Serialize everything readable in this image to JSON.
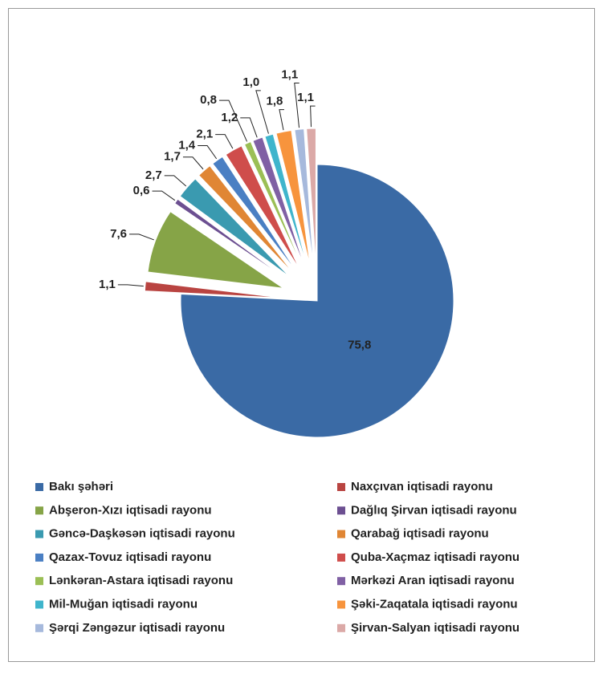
{
  "chart_data": {
    "type": "pie",
    "categories": [
      "Bakı şəhəri",
      "Naxçıvan iqtisadi rayonu",
      "Abşeron-Xızı iqtisadi rayonu",
      "Dağlıq Şirvan iqtisadi rayonu",
      "Gəncə-Daşkəsən iqtisadi rayonu",
      "Qarabağ iqtisadi rayonu",
      "Qazax-Tovuz iqtisadi rayonu",
      "Quba-Xaçmaz iqtisadi rayonu",
      "Lənkəran-Astara iqtisadi rayonu",
      "Mərkəzi Aran iqtisadi rayonu",
      "Mil-Muğan iqtisadi rayonu",
      "Şəki-Zaqatala iqtisadi rayonu",
      "Şərqi Zəngəzur iqtisadi rayonu",
      "Şirvan-Salyan iqtisadi rayonu"
    ],
    "values": [
      75.8,
      1.1,
      7.6,
      0.6,
      2.7,
      1.7,
      1.4,
      2.1,
      0.8,
      1.2,
      1.0,
      1.8,
      1.1,
      1.1
    ],
    "value_labels": [
      "75,8",
      "1,1",
      "7,6",
      "0,6",
      "2,7",
      "1,7",
      "1,4",
      "2,1",
      "0,8",
      "1,2",
      "1,0",
      "1,8",
      "1,1",
      "1,1"
    ],
    "colors": [
      "#3a6aa5",
      "#b94441",
      "#86a447",
      "#6c4f91",
      "#3a9ab0",
      "#e08634",
      "#4a7fc3",
      "#cf4d4b",
      "#9bbf55",
      "#8060a4",
      "#3fb5cc",
      "#f7943d",
      "#a6b9dc",
      "#dba9a7"
    ],
    "legend": "bottom"
  }
}
